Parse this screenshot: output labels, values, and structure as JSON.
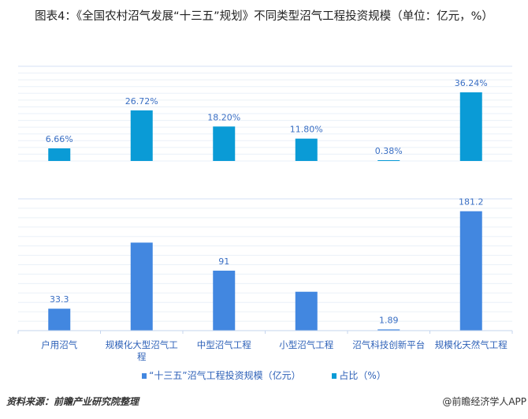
{
  "title": "图表4：《全国农村沼气发展“十三五”规划》不同类型沼气工程投资规模（单位：亿元，%）",
  "colors": {
    "scale": "#4287e0",
    "share": "#0a9bd6",
    "label": "#3a6fc4"
  },
  "chart_data": [
    {
      "type": "bar",
      "panel": "top",
      "categories": [
        "户用沼气",
        "规模化大型沼气工程",
        "中型沼气工程",
        "小型沼气工程",
        "沼气科技创新平台",
        "规模化天然气工程"
      ],
      "series": [
        {
          "name": "占比（%）",
          "values": [
            6.66,
            26.72,
            18.2,
            11.8,
            0.38,
            36.24
          ]
        }
      ],
      "data_labels": [
        "6.66%",
        "26.72%",
        "18.20%",
        "11.80%",
        "0.38%",
        "36.24%"
      ],
      "ylim": [
        0,
        50
      ],
      "grid": true
    },
    {
      "type": "bar",
      "panel": "bottom",
      "categories": [
        "户用沼气",
        "规模化大型沼气工程",
        "中型沼气工程",
        "小型沼气工程",
        "沼气科技创新平台",
        "规模化天然气工程"
      ],
      "series": [
        {
          "name": "“十三五”沼气工程投资规模（亿元）",
          "values": [
            33.3,
            133.6,
            91,
            59,
            1.89,
            181.2
          ]
        }
      ],
      "data_labels": [
        "33.3",
        "",
        "91",
        "",
        "1.89",
        "181.2"
      ],
      "ylim": [
        0,
        200
      ],
      "grid": true
    }
  ],
  "legend": [
    {
      "label": "“十三五”沼气工程投资规模（亿元）"
    },
    {
      "label": "占比（%）"
    }
  ],
  "footer": {
    "source": "资料来源：前瞻产业研究院整理",
    "credit": "@前瞻经济学人APP"
  }
}
